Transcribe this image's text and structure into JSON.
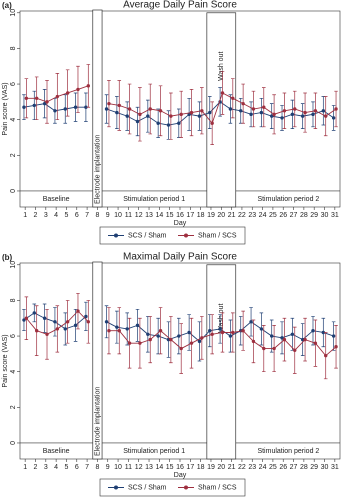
{
  "chart_data": [
    {
      "type": "line",
      "panel_label": "(a)",
      "title": "Average Daily Pain Score",
      "y_label": "Pain score (VAS)",
      "x_label": "Day",
      "annotations": [
        "Baseline",
        "Electrode implantation",
        "Stimulation period 1",
        "Wash out",
        "Stimulation period 2"
      ],
      "x": [
        1,
        2,
        3,
        4,
        5,
        6,
        7,
        8,
        9,
        10,
        11,
        12,
        13,
        14,
        15,
        16,
        17,
        18,
        19,
        20,
        21,
        22,
        23,
        24,
        25,
        26,
        27,
        28,
        29,
        30,
        31
      ],
      "xlim": [
        0.5,
        31.5
      ],
      "xticks": [
        1,
        2,
        3,
        4,
        5,
        6,
        7,
        8,
        9,
        10,
        11,
        12,
        13,
        14,
        15,
        16,
        17,
        18,
        19,
        20,
        21,
        22,
        23,
        24,
        25,
        26,
        27,
        28,
        29,
        30,
        31
      ],
      "ylim": [
        -0.9,
        10.1
      ],
      "yticks": [
        0,
        2,
        4,
        6,
        8,
        10
      ],
      "series": [
        {
          "name": "SCS / Sham",
          "color": "#1f3f73",
          "values": [
            4.7,
            4.8,
            4.9,
            4.5,
            4.6,
            4.7,
            4.7,
            null,
            4.6,
            4.4,
            4.2,
            3.9,
            4.2,
            3.8,
            3.7,
            3.8,
            4.3,
            4.2,
            4.4,
            5.0,
            4.6,
            4.5,
            4.3,
            4.4,
            4.2,
            4.1,
            4.3,
            4.2,
            4.3,
            4.5,
            4.1
          ],
          "errors": [
            0.7,
            0.8,
            0.8,
            0.7,
            0.8,
            0.8,
            0.8,
            null,
            0.8,
            0.9,
            0.8,
            0.8,
            0.9,
            0.8,
            0.8,
            0.8,
            0.9,
            0.8,
            0.9,
            0.8,
            0.8,
            0.7,
            0.7,
            0.8,
            0.7,
            0.7,
            0.8,
            0.7,
            0.7,
            0.8,
            0.7
          ]
        },
        {
          "name": "Sham / SCS",
          "color": "#9e2f3f",
          "values": [
            5.2,
            5.2,
            5.0,
            5.3,
            5.5,
            5.7,
            5.9,
            null,
            4.9,
            4.8,
            4.6,
            4.3,
            4.6,
            4.5,
            4.2,
            4.3,
            4.4,
            4.5,
            3.8,
            5.5,
            5.2,
            4.9,
            4.6,
            4.7,
            4.3,
            4.5,
            4.6,
            4.4,
            4.5,
            4.2,
            4.6
          ],
          "errors": [
            1.1,
            1.2,
            1.2,
            1.3,
            1.3,
            1.3,
            1.2,
            null,
            1.3,
            1.4,
            1.4,
            1.5,
            1.4,
            1.4,
            1.3,
            1.3,
            1.3,
            1.3,
            1.2,
            1.2,
            1.1,
            1.1,
            1.0,
            1.1,
            1.1,
            1.0,
            1.0,
            1.1,
            1.0,
            1.1,
            1.0
          ]
        }
      ]
    },
    {
      "type": "line",
      "panel_label": "(b)",
      "title": "Maximal Daily Pain Score",
      "y_label": "Pain score (VAS)",
      "x_label": "Day",
      "annotations": [
        "Baseline",
        "Electrode implantation",
        "Stimulation period 1",
        "Wash out",
        "Stimulation period 2"
      ],
      "x": [
        1,
        2,
        3,
        4,
        5,
        6,
        7,
        8,
        9,
        10,
        11,
        12,
        13,
        14,
        15,
        16,
        17,
        18,
        19,
        20,
        21,
        22,
        23,
        24,
        25,
        26,
        27,
        28,
        29,
        30,
        31
      ],
      "xlim": [
        0.5,
        31.5
      ],
      "xticks": [
        1,
        2,
        3,
        4,
        5,
        6,
        7,
        8,
        9,
        10,
        11,
        12,
        13,
        14,
        15,
        16,
        17,
        18,
        19,
        20,
        21,
        22,
        23,
        24,
        25,
        26,
        27,
        28,
        29,
        30,
        31
      ],
      "ylim": [
        -0.9,
        10.1
      ],
      "yticks": [
        0,
        2,
        4,
        6,
        8,
        10
      ],
      "series": [
        {
          "name": "SCS / Sham",
          "color": "#1f3f73",
          "values": [
            6.9,
            7.3,
            7.0,
            6.8,
            6.4,
            6.6,
            7.1,
            null,
            6.8,
            6.5,
            6.4,
            6.6,
            6.1,
            6.0,
            5.8,
            6.0,
            6.2,
            5.7,
            6.3,
            6.4,
            6.0,
            6.3,
            6.8,
            6.4,
            6.0,
            5.9,
            6.1,
            5.8,
            6.3,
            6.2,
            6.0
          ],
          "errors": [
            0.6,
            0.5,
            0.8,
            0.8,
            0.9,
            0.9,
            0.8,
            null,
            0.9,
            0.9,
            0.9,
            0.9,
            1.0,
            1.0,
            1.0,
            1.0,
            1.0,
            1.1,
            0.9,
            0.8,
            0.9,
            0.8,
            0.8,
            0.9,
            0.9,
            0.9,
            0.9,
            0.9,
            0.8,
            0.8,
            0.8
          ]
        },
        {
          "name": "Sham / SCS",
          "color": "#9e2f3f",
          "values": [
            7.0,
            6.3,
            6.1,
            6.4,
            6.8,
            7.4,
            6.8,
            null,
            6.3,
            6.3,
            5.6,
            5.6,
            5.8,
            6.3,
            5.8,
            5.3,
            5.6,
            5.9,
            6.1,
            6.2,
            6.2,
            6.3,
            5.7,
            5.3,
            5.3,
            5.8,
            5.2,
            5.8,
            5.6,
            4.9,
            5.4
          ],
          "errors": [
            1.2,
            1.4,
            1.4,
            1.3,
            1.2,
            1.0,
            1.2,
            null,
            1.3,
            1.3,
            1.4,
            1.4,
            1.3,
            1.3,
            1.3,
            1.4,
            1.4,
            1.2,
            1.1,
            1.1,
            1.1,
            1.1,
            1.2,
            1.3,
            1.3,
            1.2,
            1.3,
            1.2,
            1.3,
            1.3,
            1.2
          ]
        }
      ]
    }
  ]
}
